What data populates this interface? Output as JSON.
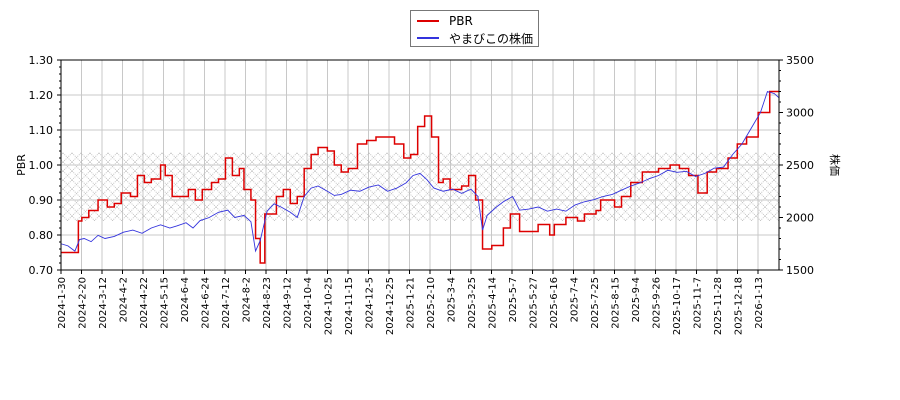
{
  "chart_data": {
    "type": "line",
    "title": "",
    "xlabel": "",
    "ylabel_left": "PBR",
    "ylabel_right": "株価",
    "ylim_left": [
      0.7,
      1.3
    ],
    "ylim_right": [
      1500,
      3500
    ],
    "yticks_left": [
      "0.70",
      "0.80",
      "0.90",
      "1.00",
      "1.10",
      "1.20",
      "1.30"
    ],
    "yticks_right": [
      "1500",
      "2000",
      "2500",
      "3000",
      "3500"
    ],
    "xtick_labels": [
      "2024-1-30",
      "2024-2-20",
      "2024-3-12",
      "2024-4-2",
      "2024-4-22",
      "2024-5-15",
      "2024-6-4",
      "2024-6-24",
      "2024-7-12",
      "2024-8-2",
      "2024-8-23",
      "2024-9-12",
      "2024-10-4",
      "2024-10-25",
      "2024-11-15",
      "2024-12-5",
      "2024-12-25",
      "2025-1-21",
      "2025-2-10",
      "2025-3-4",
      "2025-3-25",
      "2025-4-14",
      "2025-5-7",
      "2025-5-27",
      "2025-6-16",
      "2025-7-4",
      "2025-7-25",
      "2025-8-15",
      "2025-9-4",
      "2025-9-26",
      "2025-10-17",
      "2025-11-7",
      "2025-11-28",
      "2025-12-18",
      "2026-1-13"
    ],
    "grid": true,
    "legend_position": "top-center",
    "hatched_band_pbr": [
      0.84,
      1.035
    ],
    "series": [
      {
        "name": "PBR",
        "axis": "left",
        "color": "#dd0000",
        "step": true,
        "points": [
          [
            0,
            0.75
          ],
          [
            0.7,
            0.75
          ],
          [
            0.75,
            0.84
          ],
          [
            0.9,
            0.85
          ],
          [
            1.2,
            0.87
          ],
          [
            1.6,
            0.9
          ],
          [
            2.0,
            0.88
          ],
          [
            2.3,
            0.89
          ],
          [
            2.6,
            0.92
          ],
          [
            3.0,
            0.91
          ],
          [
            3.3,
            0.97
          ],
          [
            3.6,
            0.95
          ],
          [
            3.9,
            0.96
          ],
          [
            4.3,
            1.0
          ],
          [
            4.5,
            0.97
          ],
          [
            4.8,
            0.91
          ],
          [
            5.2,
            0.91
          ],
          [
            5.5,
            0.93
          ],
          [
            5.8,
            0.9
          ],
          [
            6.1,
            0.93
          ],
          [
            6.5,
            0.95
          ],
          [
            6.8,
            0.96
          ],
          [
            7.1,
            1.02
          ],
          [
            7.4,
            0.97
          ],
          [
            7.7,
            0.99
          ],
          [
            7.9,
            0.93
          ],
          [
            8.2,
            0.9
          ],
          [
            8.4,
            0.79
          ],
          [
            8.6,
            0.72
          ],
          [
            8.8,
            0.86
          ],
          [
            9.1,
            0.86
          ],
          [
            9.3,
            0.91
          ],
          [
            9.6,
            0.93
          ],
          [
            9.9,
            0.89
          ],
          [
            10.2,
            0.91
          ],
          [
            10.5,
            0.99
          ],
          [
            10.8,
            1.03
          ],
          [
            11.1,
            1.05
          ],
          [
            11.5,
            1.04
          ],
          [
            11.8,
            1.0
          ],
          [
            12.1,
            0.98
          ],
          [
            12.4,
            0.99
          ],
          [
            12.8,
            1.06
          ],
          [
            13.2,
            1.07
          ],
          [
            13.6,
            1.08
          ],
          [
            14.4,
            1.06
          ],
          [
            14.8,
            1.02
          ],
          [
            15.1,
            1.03
          ],
          [
            15.4,
            1.11
          ],
          [
            15.7,
            1.14
          ],
          [
            16.0,
            1.08
          ],
          [
            16.3,
            0.95
          ],
          [
            16.5,
            0.96
          ],
          [
            16.8,
            0.93
          ],
          [
            17.3,
            0.94
          ],
          [
            17.6,
            0.97
          ],
          [
            17.9,
            0.9
          ],
          [
            18.2,
            0.76
          ],
          [
            18.6,
            0.77
          ],
          [
            19.1,
            0.82
          ],
          [
            19.4,
            0.86
          ],
          [
            19.8,
            0.81
          ],
          [
            20.3,
            0.81
          ],
          [
            20.6,
            0.83
          ],
          [
            21.1,
            0.8
          ],
          [
            21.3,
            0.83
          ],
          [
            21.8,
            0.85
          ],
          [
            22.3,
            0.84
          ],
          [
            22.6,
            0.86
          ],
          [
            23.1,
            0.87
          ],
          [
            23.3,
            0.9
          ],
          [
            23.9,
            0.88
          ],
          [
            24.2,
            0.91
          ],
          [
            24.6,
            0.95
          ],
          [
            25.1,
            0.98
          ],
          [
            25.8,
            0.99
          ],
          [
            26.3,
            1.0
          ],
          [
            26.7,
            0.99
          ],
          [
            27.1,
            0.97
          ],
          [
            27.5,
            0.92
          ],
          [
            27.9,
            0.98
          ],
          [
            28.3,
            0.99
          ],
          [
            28.8,
            1.02
          ],
          [
            29.2,
            1.06
          ],
          [
            29.6,
            1.08
          ],
          [
            30.1,
            1.15
          ],
          [
            30.6,
            1.21
          ],
          [
            31.0,
            1.21
          ]
        ]
      },
      {
        "name": "やまびこの株価",
        "axis": "right",
        "color": "#3333dd",
        "step": false,
        "points": [
          [
            0,
            1750
          ],
          [
            0.3,
            1730
          ],
          [
            0.6,
            1680
          ],
          [
            0.8,
            1790
          ],
          [
            1.0,
            1800
          ],
          [
            1.3,
            1770
          ],
          [
            1.6,
            1830
          ],
          [
            1.9,
            1800
          ],
          [
            2.3,
            1820
          ],
          [
            2.7,
            1860
          ],
          [
            3.1,
            1880
          ],
          [
            3.5,
            1850
          ],
          [
            3.9,
            1900
          ],
          [
            4.3,
            1930
          ],
          [
            4.7,
            1900
          ],
          [
            5.0,
            1920
          ],
          [
            5.4,
            1950
          ],
          [
            5.7,
            1900
          ],
          [
            6.0,
            1970
          ],
          [
            6.4,
            2000
          ],
          [
            6.8,
            2050
          ],
          [
            7.2,
            2070
          ],
          [
            7.5,
            2000
          ],
          [
            7.9,
            2020
          ],
          [
            8.2,
            1960
          ],
          [
            8.4,
            1680
          ],
          [
            8.6,
            1780
          ],
          [
            8.9,
            2060
          ],
          [
            9.2,
            2130
          ],
          [
            9.5,
            2100
          ],
          [
            9.9,
            2050
          ],
          [
            10.2,
            2000
          ],
          [
            10.5,
            2200
          ],
          [
            10.8,
            2280
          ],
          [
            11.1,
            2300
          ],
          [
            11.5,
            2250
          ],
          [
            11.8,
            2210
          ],
          [
            12.1,
            2220
          ],
          [
            12.5,
            2260
          ],
          [
            12.9,
            2250
          ],
          [
            13.3,
            2290
          ],
          [
            13.7,
            2310
          ],
          [
            14.1,
            2250
          ],
          [
            14.5,
            2280
          ],
          [
            14.9,
            2330
          ],
          [
            15.2,
            2400
          ],
          [
            15.5,
            2420
          ],
          [
            15.8,
            2360
          ],
          [
            16.1,
            2280
          ],
          [
            16.5,
            2250
          ],
          [
            16.9,
            2270
          ],
          [
            17.3,
            2230
          ],
          [
            17.7,
            2270
          ],
          [
            18.0,
            2200
          ],
          [
            18.2,
            1880
          ],
          [
            18.4,
            2020
          ],
          [
            18.8,
            2100
          ],
          [
            19.1,
            2150
          ],
          [
            19.5,
            2200
          ],
          [
            19.8,
            2070
          ],
          [
            20.2,
            2080
          ],
          [
            20.6,
            2100
          ],
          [
            21.0,
            2060
          ],
          [
            21.4,
            2080
          ],
          [
            21.8,
            2060
          ],
          [
            22.2,
            2120
          ],
          [
            22.6,
            2150
          ],
          [
            23.0,
            2170
          ],
          [
            23.4,
            2200
          ],
          [
            23.8,
            2220
          ],
          [
            24.2,
            2260
          ],
          [
            24.6,
            2300
          ],
          [
            25.0,
            2330
          ],
          [
            25.4,
            2370
          ],
          [
            25.8,
            2400
          ],
          [
            26.2,
            2450
          ],
          [
            26.6,
            2430
          ],
          [
            27.0,
            2440
          ],
          [
            27.4,
            2390
          ],
          [
            27.8,
            2420
          ],
          [
            28.2,
            2470
          ],
          [
            28.6,
            2480
          ],
          [
            29.0,
            2600
          ],
          [
            29.4,
            2700
          ],
          [
            29.8,
            2850
          ],
          [
            30.2,
            3000
          ],
          [
            30.5,
            3200
          ],
          [
            30.8,
            3180
          ],
          [
            31.0,
            3140
          ]
        ]
      }
    ]
  },
  "legend": {
    "items": [
      {
        "label": "PBR",
        "color": "#dd0000"
      },
      {
        "label": "やまびこの株価",
        "color": "#3333dd"
      }
    ]
  }
}
